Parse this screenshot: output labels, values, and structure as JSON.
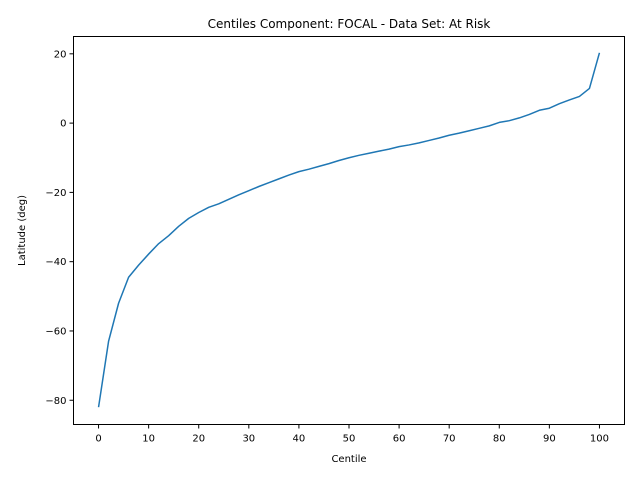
{
  "chart_data": {
    "type": "line",
    "title": "Centiles Component: FOCAL - Data Set: At Risk",
    "xlabel": "Centile",
    "ylabel": "Latitude (deg)",
    "xlim": [
      -5,
      105
    ],
    "ylim": [
      -87,
      25
    ],
    "xticks": [
      0,
      10,
      20,
      30,
      40,
      50,
      60,
      70,
      80,
      90,
      100
    ],
    "yticks": [
      -80,
      -60,
      -40,
      -20,
      0,
      20
    ],
    "grid": false,
    "line_color": "#1f77b4",
    "series": [
      {
        "x": [
          0,
          2,
          4,
          6,
          8,
          10,
          12,
          14,
          16,
          18,
          20,
          22,
          24,
          26,
          28,
          30,
          32,
          34,
          36,
          38,
          40,
          42,
          44,
          46,
          48,
          50,
          52,
          54,
          56,
          58,
          60,
          62,
          64,
          66,
          68,
          70,
          72,
          74,
          76,
          78,
          80,
          82,
          84,
          86,
          88,
          90,
          92,
          94,
          96,
          98,
          100
        ],
        "values": [
          -82,
          -63,
          -52,
          -44.5,
          -41,
          -37.8,
          -34.8,
          -32.5,
          -29.8,
          -27.5,
          -25.8,
          -24.3,
          -23.3,
          -22,
          -20.7,
          -19.5,
          -18.3,
          -17.2,
          -16.1,
          -15,
          -14,
          -13.3,
          -12.5,
          -11.7,
          -10.8,
          -10,
          -9.3,
          -8.7,
          -8.1,
          -7.5,
          -6.8,
          -6.3,
          -5.7,
          -5,
          -4.3,
          -3.5,
          -2.9,
          -2.2,
          -1.5,
          -0.8,
          0.2,
          0.7,
          1.5,
          2.5,
          3.7,
          4.3,
          5.6,
          6.7,
          7.7,
          10,
          20.3
        ]
      }
    ]
  }
}
